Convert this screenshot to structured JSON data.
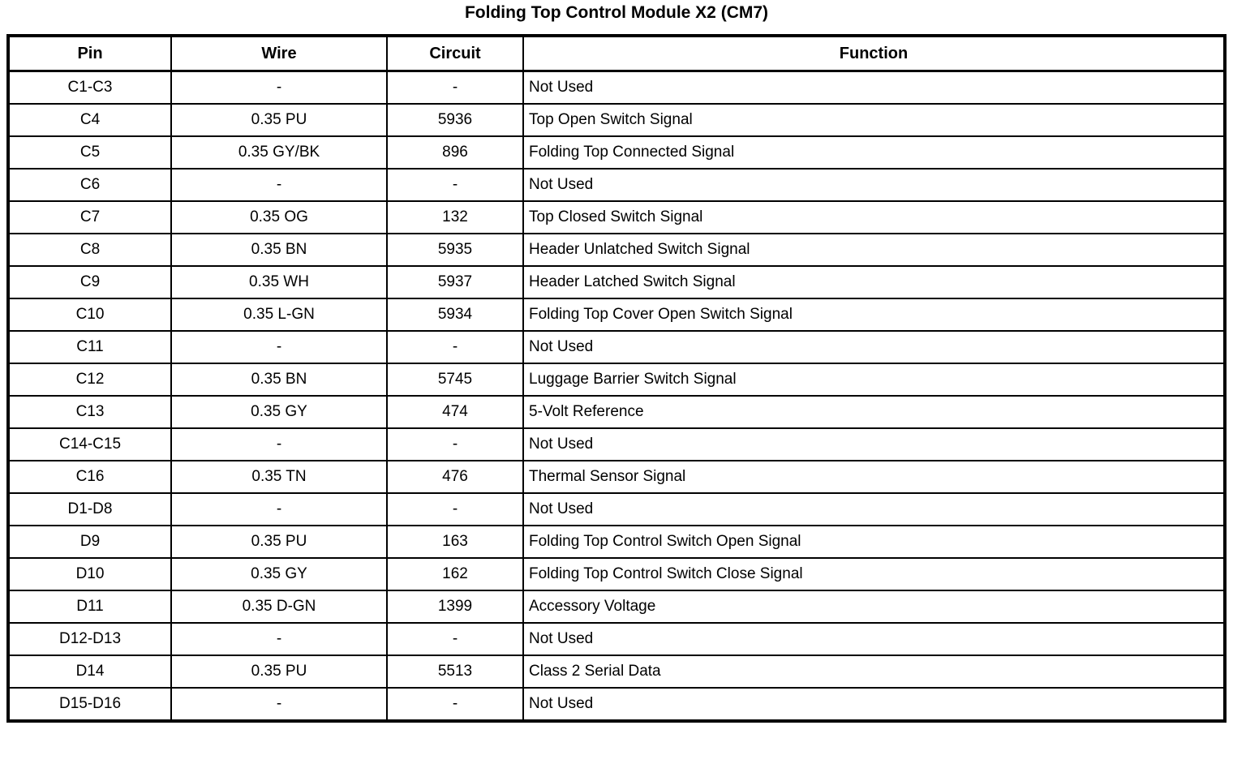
{
  "title": "Folding Top Control Module X2 (CM7)",
  "table": {
    "columns": [
      {
        "label": "Pin"
      },
      {
        "label": "Wire"
      },
      {
        "label": "Circuit"
      },
      {
        "label": "Function"
      }
    ],
    "rows": [
      {
        "pin": "C1-C3",
        "wire": "-",
        "circuit": "-",
        "function": "Not Used"
      },
      {
        "pin": "C4",
        "wire": "0.35 PU",
        "circuit": "5936",
        "function": "Top Open Switch Signal"
      },
      {
        "pin": "C5",
        "wire": "0.35 GY/BK",
        "circuit": "896",
        "function": "Folding Top Connected Signal"
      },
      {
        "pin": "C6",
        "wire": "-",
        "circuit": "-",
        "function": "Not Used"
      },
      {
        "pin": "C7",
        "wire": "0.35 OG",
        "circuit": "132",
        "function": "Top Closed Switch Signal"
      },
      {
        "pin": "C8",
        "wire": "0.35 BN",
        "circuit": "5935",
        "function": "Header Unlatched Switch Signal"
      },
      {
        "pin": "C9",
        "wire": "0.35 WH",
        "circuit": "5937",
        "function": "Header Latched Switch Signal"
      },
      {
        "pin": "C10",
        "wire": "0.35 L-GN",
        "circuit": "5934",
        "function": "Folding Top Cover Open Switch Signal"
      },
      {
        "pin": "C11",
        "wire": "-",
        "circuit": "-",
        "function": "Not Used"
      },
      {
        "pin": "C12",
        "wire": "0.35 BN",
        "circuit": "5745",
        "function": "Luggage Barrier Switch Signal"
      },
      {
        "pin": "C13",
        "wire": "0.35 GY",
        "circuit": "474",
        "function": "5-Volt Reference"
      },
      {
        "pin": "C14-C15",
        "wire": "-",
        "circuit": "-",
        "function": "Not Used"
      },
      {
        "pin": "C16",
        "wire": "0.35 TN",
        "circuit": "476",
        "function": "Thermal Sensor Signal"
      },
      {
        "pin": "D1-D8",
        "wire": "-",
        "circuit": "-",
        "function": "Not Used"
      },
      {
        "pin": "D9",
        "wire": "0.35 PU",
        "circuit": "163",
        "function": "Folding Top Control Switch Open Signal"
      },
      {
        "pin": "D10",
        "wire": "0.35 GY",
        "circuit": "162",
        "function": "Folding Top Control Switch Close Signal"
      },
      {
        "pin": "D11",
        "wire": "0.35 D-GN",
        "circuit": "1399",
        "function": "Accessory Voltage"
      },
      {
        "pin": "D12-D13",
        "wire": "-",
        "circuit": "-",
        "function": "Not Used"
      },
      {
        "pin": "D14",
        "wire": "0.35 PU",
        "circuit": "5513",
        "function": "Class 2 Serial Data"
      },
      {
        "pin": "D15-D16",
        "wire": "-",
        "circuit": "-",
        "function": "Not Used"
      }
    ]
  }
}
